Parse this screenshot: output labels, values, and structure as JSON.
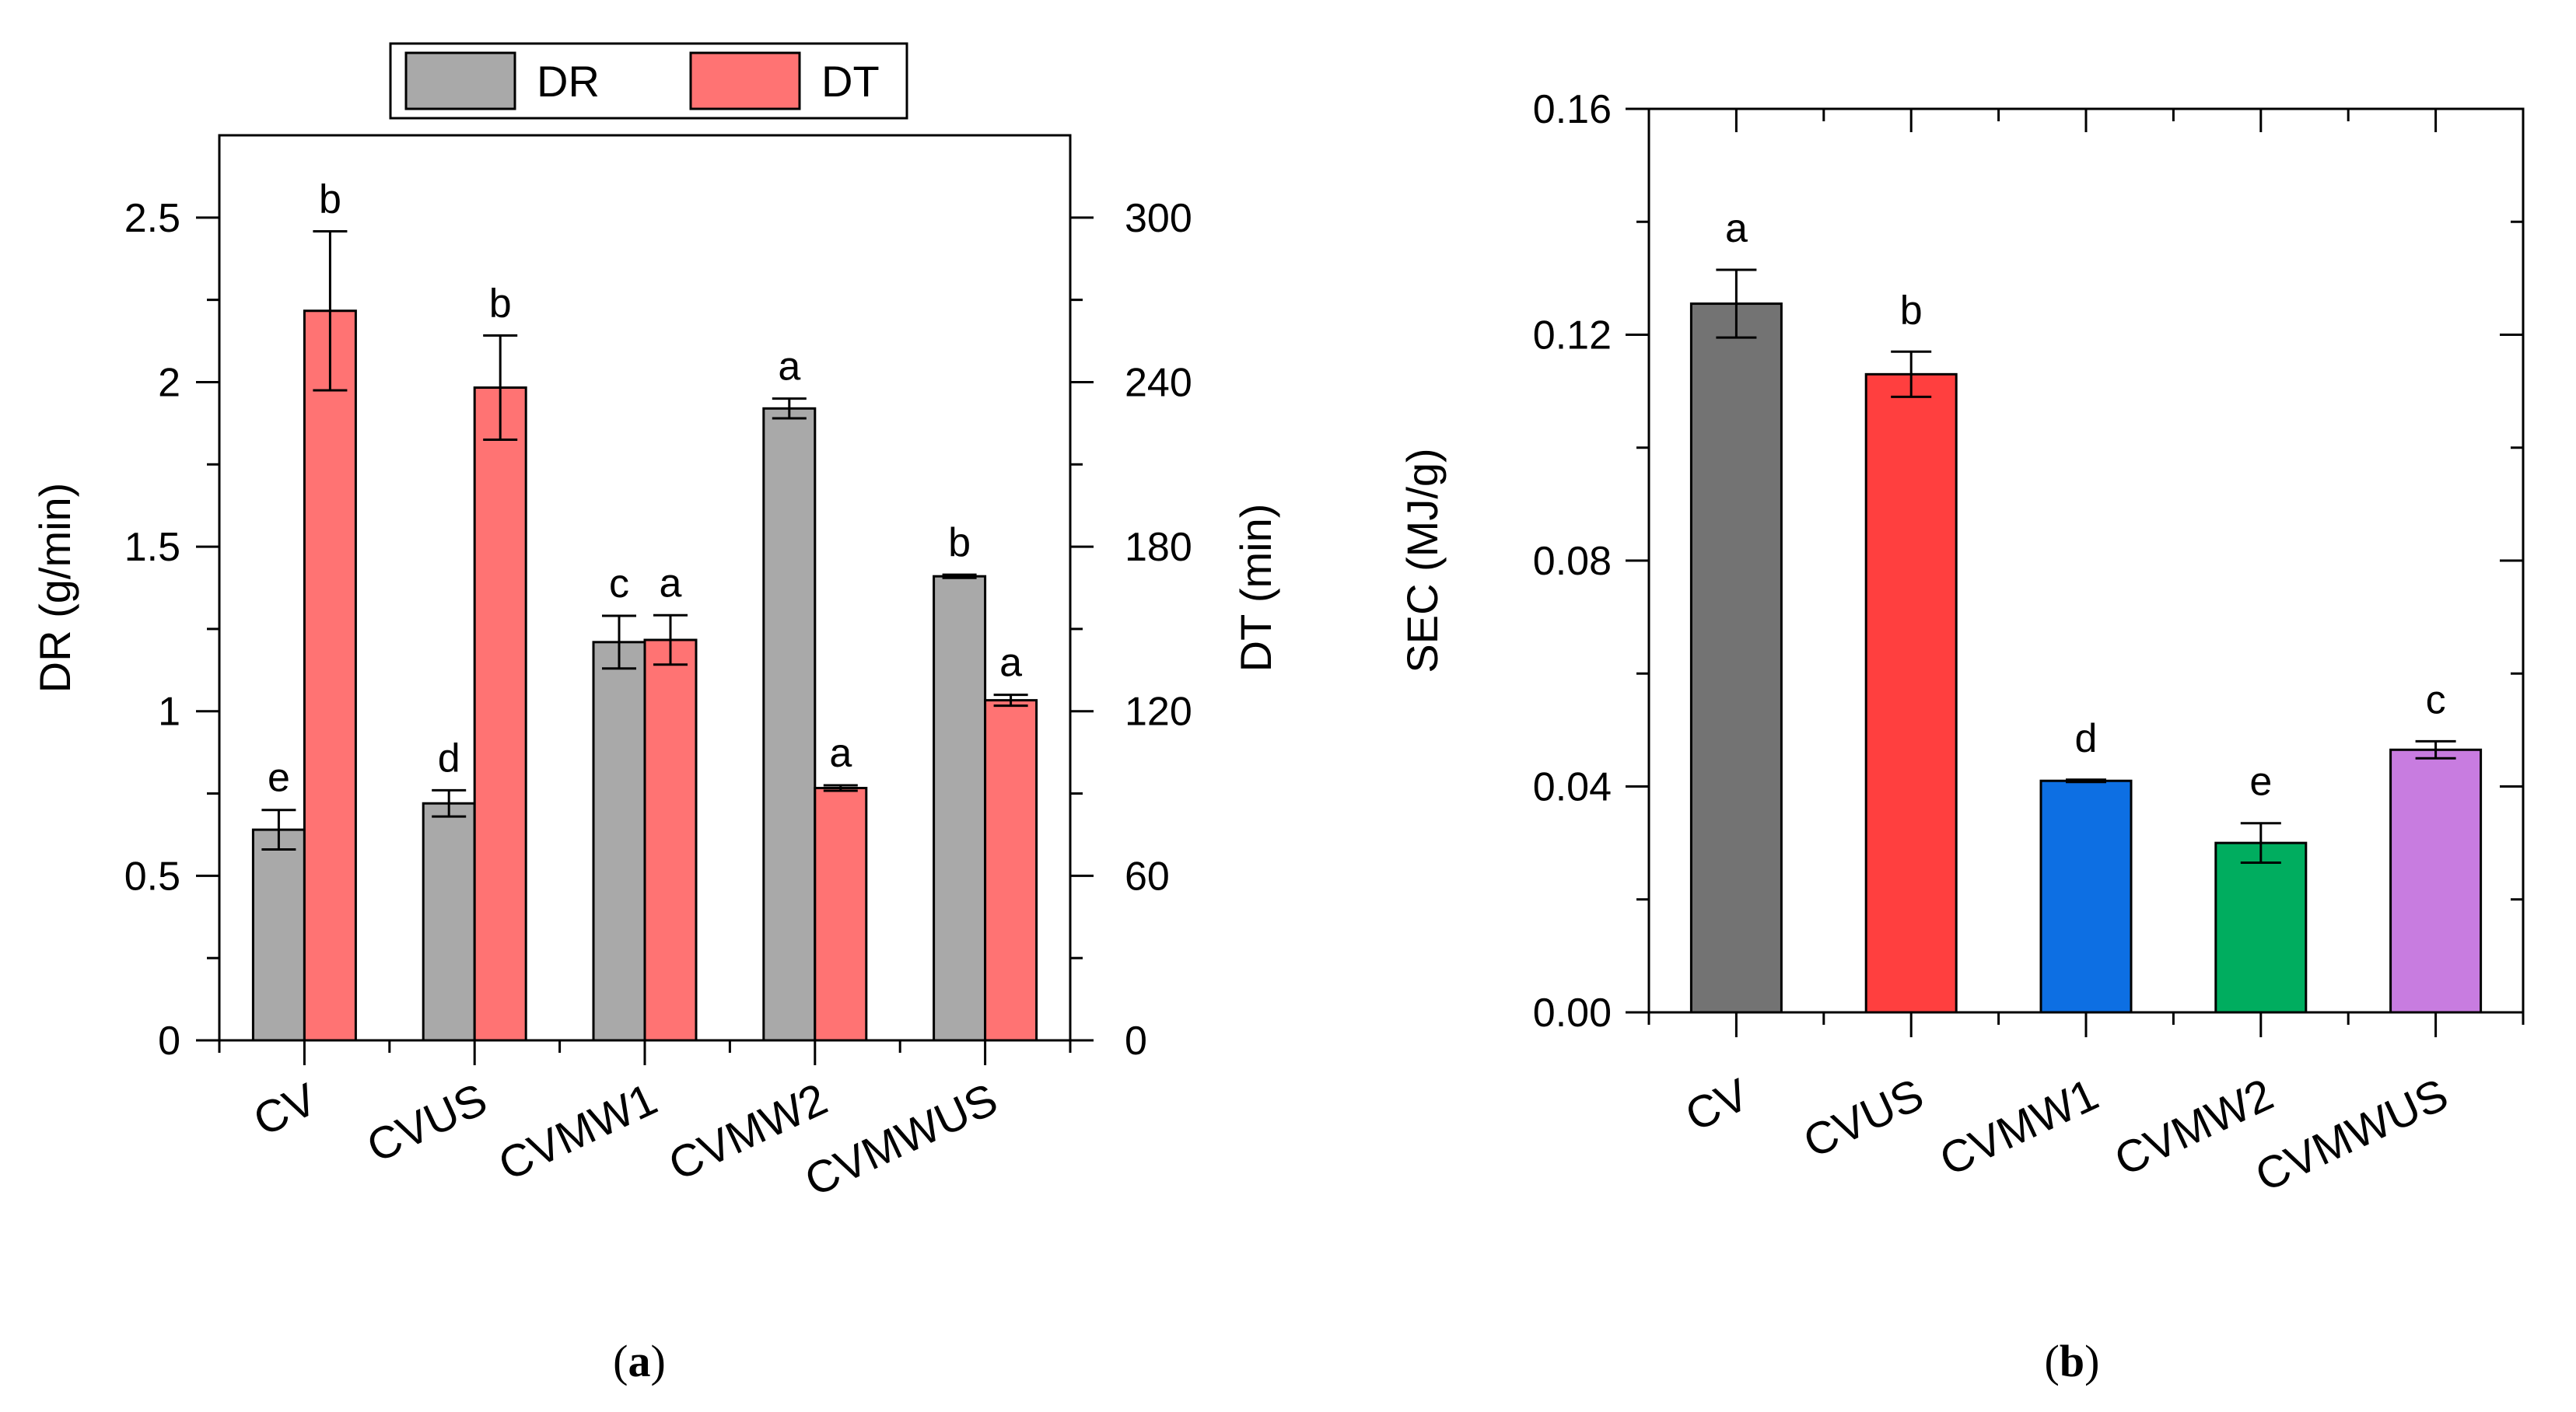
{
  "chart_data": [
    {
      "id": "a",
      "type": "bar",
      "panel_label": "a",
      "categories": [
        "CV",
        "CVUS",
        "CVMW1",
        "CVMW2",
        "CVMWUS"
      ],
      "series": [
        {
          "name": "DR",
          "axis": "left",
          "color": "#a9a9a9",
          "values": [
            0.64,
            0.72,
            1.21,
            1.92,
            1.41
          ],
          "errors": [
            0.06,
            0.04,
            0.08,
            0.03,
            0.005
          ],
          "sig": [
            "e",
            "d",
            "c",
            "a",
            "b"
          ]
        },
        {
          "name": "DT",
          "axis": "right",
          "color": "#ff7373",
          "values": [
            266,
            238,
            146,
            92,
            124
          ],
          "errors": [
            29,
            19,
            9,
            1,
            2
          ],
          "sig": [
            "b",
            "b",
            "a",
            "a",
            "a"
          ]
        }
      ],
      "ylabel_left": "DR (g/min)",
      "ylabel_right": "DT (min)",
      "ylim_left": [
        0,
        2.75
      ],
      "ylim_right": [
        0,
        330
      ],
      "yticks_left": [
        "0",
        "0.5",
        "1",
        "1.5",
        "2",
        "2.5"
      ],
      "yticks_left_values": [
        0,
        0.5,
        1,
        1.5,
        2,
        2.5
      ],
      "yticks_right": [
        "0",
        "60",
        "120",
        "180",
        "240",
        "300"
      ],
      "yticks_right_values": [
        0,
        60,
        120,
        180,
        240,
        300
      ],
      "legend": [
        "DR",
        "DT"
      ],
      "legend_position": "top-center"
    },
    {
      "id": "b",
      "type": "bar",
      "panel_label": "b",
      "categories": [
        "CV",
        "CVUS",
        "CVMW1",
        "CVMW2",
        "CVMWUS"
      ],
      "series": [
        {
          "name": "SEC",
          "values": [
            0.1255,
            0.113,
            0.041,
            0.03,
            0.0465
          ],
          "errors": [
            0.006,
            0.004,
            0.0002,
            0.0035,
            0.0015
          ],
          "colors": [
            "#737373",
            "#ff3f3f",
            "#0d6fe3",
            "#00ad5f",
            "#c87ce0"
          ],
          "sig": [
            "a",
            "b",
            "d",
            "e",
            "c"
          ]
        }
      ],
      "ylabel": "SEC (MJ/g)",
      "ylim": [
        0,
        0.16
      ],
      "yticks": [
        "0.00",
        "0.04",
        "0.08",
        "0.12",
        "0.16"
      ],
      "yticks_values": [
        0,
        0.04,
        0.08,
        0.12,
        0.16
      ]
    }
  ]
}
